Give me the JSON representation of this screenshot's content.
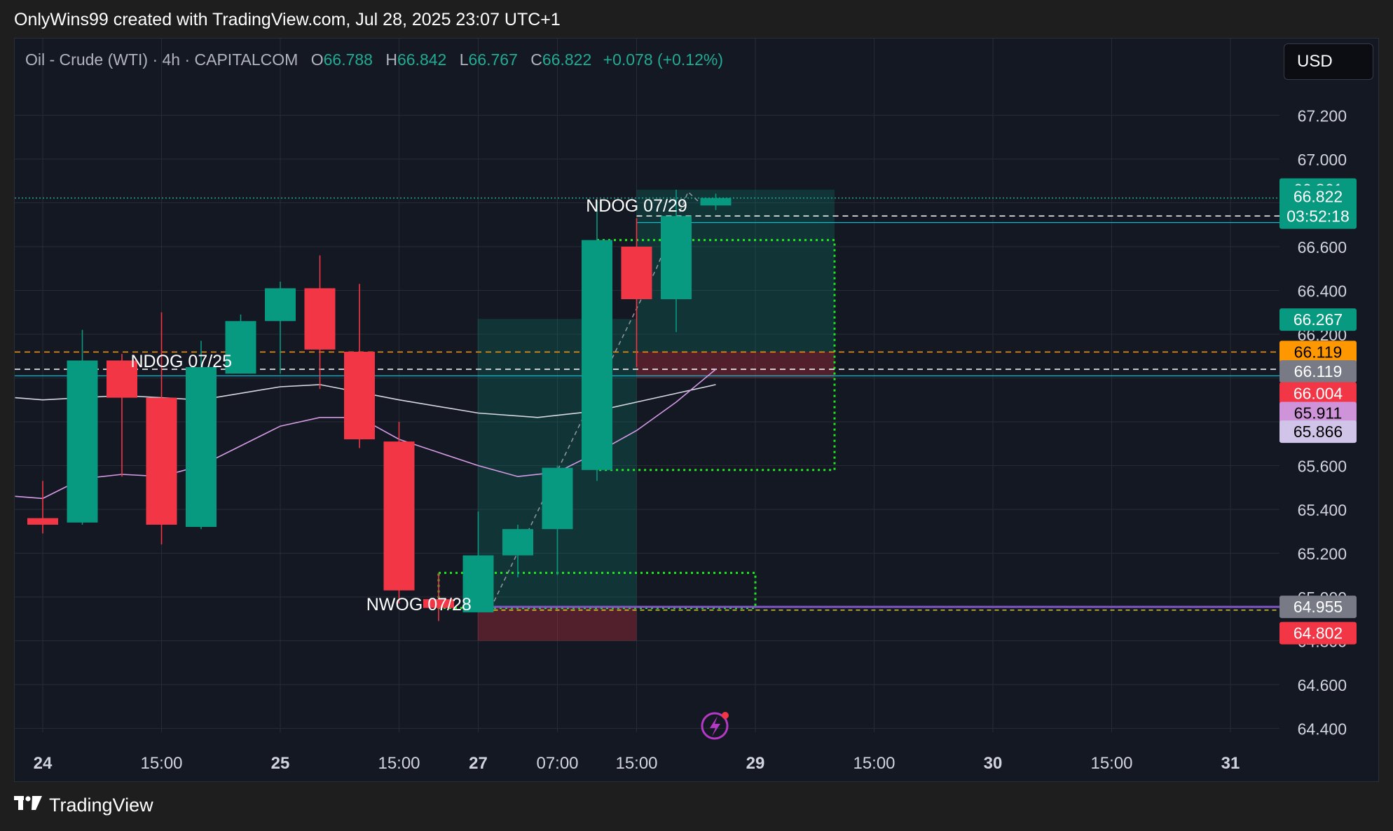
{
  "header": {
    "credit": "OnlyWins99 created with TradingView.com, Jul 28, 2025 23:07 UTC+1"
  },
  "footer": {
    "brand": "TradingView"
  },
  "toolbar": {
    "currency": "USD"
  },
  "legend": {
    "symbol": "Oil - Crude (WTI) · 4h · CAPITALCOM",
    "o_label": "O",
    "o": "66.788",
    "h_label": "H",
    "h": "66.842",
    "l_label": "L",
    "l": "66.767",
    "c_label": "C",
    "c": "66.822",
    "change": "+0.078 (+0.12%)"
  },
  "colors": {
    "up": "#089981",
    "down": "#f23645",
    "background": "#141823",
    "grid": "#262b36",
    "ma_white": "#d8d8e0",
    "ma_pink": "#d69be6",
    "orange": "#ff9800",
    "green_dotted": "#1ee81e"
  },
  "chart_data": {
    "type": "candlestick",
    "timeframe": "4h",
    "ylim": [
      64.3,
      67.35
    ],
    "y_ticks": [
      "67.200",
      "67.000",
      "66.800",
      "66.600",
      "66.400",
      "66.200",
      "66.000",
      "65.800",
      "65.600",
      "65.400",
      "65.200",
      "65.000",
      "64.800",
      "64.600",
      "64.400"
    ],
    "x_ticks": [
      {
        "label": "24",
        "bold": true,
        "bar": 0
      },
      {
        "label": "15:00",
        "bold": false,
        "bar": 3
      },
      {
        "label": "25",
        "bold": true,
        "bar": 6
      },
      {
        "label": "15:00",
        "bold": false,
        "bar": 9
      },
      {
        "label": "27",
        "bold": true,
        "bar": 11
      },
      {
        "label": "07:00",
        "bold": false,
        "bar": 13
      },
      {
        "label": "15:00",
        "bold": false,
        "bar": 15
      },
      {
        "label": "29",
        "bold": true,
        "bar": 18
      },
      {
        "label": "15:00",
        "bold": false,
        "bar": 21
      },
      {
        "label": "30",
        "bold": true,
        "bar": 24
      },
      {
        "label": "15:00",
        "bold": false,
        "bar": 27
      },
      {
        "label": "31",
        "bold": true,
        "bar": 30
      }
    ],
    "candles": [
      {
        "i": 0,
        "o": 65.36,
        "h": 65.53,
        "l": 65.29,
        "c": 65.33
      },
      {
        "i": 1,
        "o": 65.34,
        "h": 66.22,
        "l": 65.33,
        "c": 66.08
      },
      {
        "i": 2,
        "o": 66.08,
        "h": 66.11,
        "l": 65.55,
        "c": 65.91
      },
      {
        "i": 3,
        "o": 65.91,
        "h": 66.3,
        "l": 65.24,
        "c": 65.33
      },
      {
        "i": 4,
        "o": 65.32,
        "h": 66.17,
        "l": 65.31,
        "c": 66.05
      },
      {
        "i": 5,
        "o": 66.02,
        "h": 66.29,
        "l": 66.02,
        "c": 66.26
      },
      {
        "i": 6,
        "o": 66.26,
        "h": 66.44,
        "l": 66.02,
        "c": 66.41
      },
      {
        "i": 7,
        "o": 66.41,
        "h": 66.56,
        "l": 65.95,
        "c": 66.13
      },
      {
        "i": 8,
        "o": 66.12,
        "h": 66.43,
        "l": 65.68,
        "c": 65.72
      },
      {
        "i": 9,
        "o": 65.71,
        "h": 65.8,
        "l": 64.97,
        "c": 65.03
      },
      {
        "i": 10,
        "o": 64.99,
        "h": 65.11,
        "l": 64.89,
        "c": 64.95
      },
      {
        "i": 11,
        "o": 64.93,
        "h": 65.39,
        "l": 64.93,
        "c": 65.19
      },
      {
        "i": 12,
        "o": 65.19,
        "h": 65.33,
        "l": 65.09,
        "c": 65.31
      },
      {
        "i": 13,
        "o": 65.31,
        "h": 65.6,
        "l": 65.1,
        "c": 65.59
      },
      {
        "i": 14,
        "o": 65.58,
        "h": 66.81,
        "l": 65.53,
        "c": 66.63
      },
      {
        "i": 15,
        "o": 66.6,
        "h": 66.73,
        "l": 66.05,
        "c": 66.36
      },
      {
        "i": 16,
        "o": 66.36,
        "h": 66.86,
        "l": 66.21,
        "c": 66.74
      },
      {
        "i": 17,
        "o": 66.788,
        "h": 66.842,
        "l": 66.767,
        "c": 66.822
      }
    ],
    "ma_white": [
      {
        "i": -0.7,
        "v": 65.91
      },
      {
        "i": 0,
        "v": 65.9
      },
      {
        "i": 2,
        "v": 65.92
      },
      {
        "i": 4,
        "v": 65.9
      },
      {
        "i": 6,
        "v": 65.96
      },
      {
        "i": 7,
        "v": 65.97
      },
      {
        "i": 9,
        "v": 65.9
      },
      {
        "i": 11,
        "v": 65.84
      },
      {
        "i": 12.5,
        "v": 65.82
      },
      {
        "i": 14,
        "v": 65.85
      },
      {
        "i": 15,
        "v": 65.89
      },
      {
        "i": 17,
        "v": 65.97
      }
    ],
    "ma_pink": [
      {
        "i": -0.7,
        "v": 65.46
      },
      {
        "i": 0,
        "v": 65.45
      },
      {
        "i": 1,
        "v": 65.54
      },
      {
        "i": 2,
        "v": 65.56
      },
      {
        "i": 3,
        "v": 65.55
      },
      {
        "i": 4,
        "v": 65.6
      },
      {
        "i": 5,
        "v": 65.69
      },
      {
        "i": 6,
        "v": 65.78
      },
      {
        "i": 7,
        "v": 65.82
      },
      {
        "i": 8,
        "v": 65.82
      },
      {
        "i": 9,
        "v": 65.72
      },
      {
        "i": 10,
        "v": 65.66
      },
      {
        "i": 11,
        "v": 65.6
      },
      {
        "i": 12,
        "v": 65.55
      },
      {
        "i": 13,
        "v": 65.57
      },
      {
        "i": 14,
        "v": 65.66
      },
      {
        "i": 15,
        "v": 65.76
      },
      {
        "i": 16,
        "v": 65.89
      },
      {
        "i": 17,
        "v": 66.04
      }
    ],
    "gap_labels": [
      {
        "text": "NDOG 07/29",
        "bar": 15,
        "value": 66.76
      },
      {
        "text": "NDOG 07/25",
        "bar": 3.5,
        "value": 66.05
      },
      {
        "text": "NWOG 07/28",
        "bar": 9.5,
        "value": 64.94
      }
    ],
    "price_labels": [
      {
        "value": "66.861",
        "bg": "#089981",
        "fg": "#ffffff"
      },
      {
        "value": "66.822",
        "bg": "#089981",
        "fg": "#ffffff",
        "sub": "03:52:18"
      },
      {
        "value": "66.267",
        "bg": "#089981",
        "fg": "#ffffff"
      },
      {
        "value": "66.119",
        "bg": "#ff9800",
        "fg": "#000000"
      },
      {
        "value": "66.119",
        "bg": "#787b86",
        "fg": "#ffffff"
      },
      {
        "value": "66.004",
        "bg": "#f23645",
        "fg": "#ffffff"
      },
      {
        "value": "65.911",
        "bg": "#ce93d8",
        "fg": "#000000"
      },
      {
        "value": "65.866",
        "bg": "#d1c4e9",
        "fg": "#000000"
      },
      {
        "value": "64.955",
        "bg": "#787b86",
        "fg": "#ffffff"
      },
      {
        "value": "64.802",
        "bg": "#f23645",
        "fg": "#ffffff"
      }
    ]
  }
}
